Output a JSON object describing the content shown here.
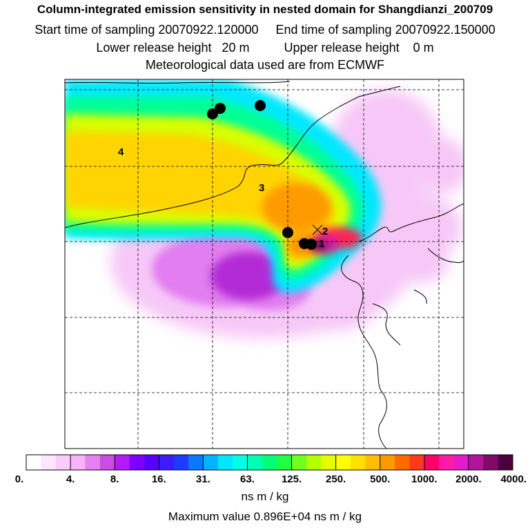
{
  "header": {
    "title": "Column-integrated emission sensitivity in nested domain for Shangdianzi_200709",
    "line2": "Start time of sampling 20070922.120000     End time of sampling 20070922.150000",
    "line3": "Lower release height   20 m          Upper release height    0 m",
    "line4": "Meteorological data used are from ECMWF"
  },
  "map": {
    "point_labels": [
      {
        "text": "4"
      },
      {
        "text": "3"
      },
      {
        "text": "2"
      },
      {
        "text": "1"
      }
    ]
  },
  "colorbar": {
    "tick_labels": [
      "0.",
      "4.",
      "8.",
      "16.",
      "31.",
      "63.",
      "125.",
      "250.",
      "500.",
      "1000.",
      "2000.",
      "4000."
    ],
    "units": "ns m / kg",
    "colors": [
      "#ffffff",
      "#ffe6ff",
      "#fbccfb",
      "#f7b3f7",
      "#e680f0",
      "#cc4de6",
      "#b31aff",
      "#8000ff",
      "#5a00ff",
      "#3d1aff",
      "#1e3cff",
      "#0a78ff",
      "#00b4ff",
      "#00e6ff",
      "#00ffe6",
      "#00ffb4",
      "#00ff78",
      "#20ff40",
      "#70ff20",
      "#b4ff00",
      "#e6ff00",
      "#ffff00",
      "#ffe000",
      "#ffbf00",
      "#ff9900",
      "#ff6a00",
      "#ff3a1a",
      "#ff0066",
      "#ff1aa8",
      "#e61acc",
      "#b3149e",
      "#800a66",
      "#4d0040"
    ]
  },
  "footer": {
    "max_value": "Maximum value  0.896E+04 ns m / kg"
  }
}
